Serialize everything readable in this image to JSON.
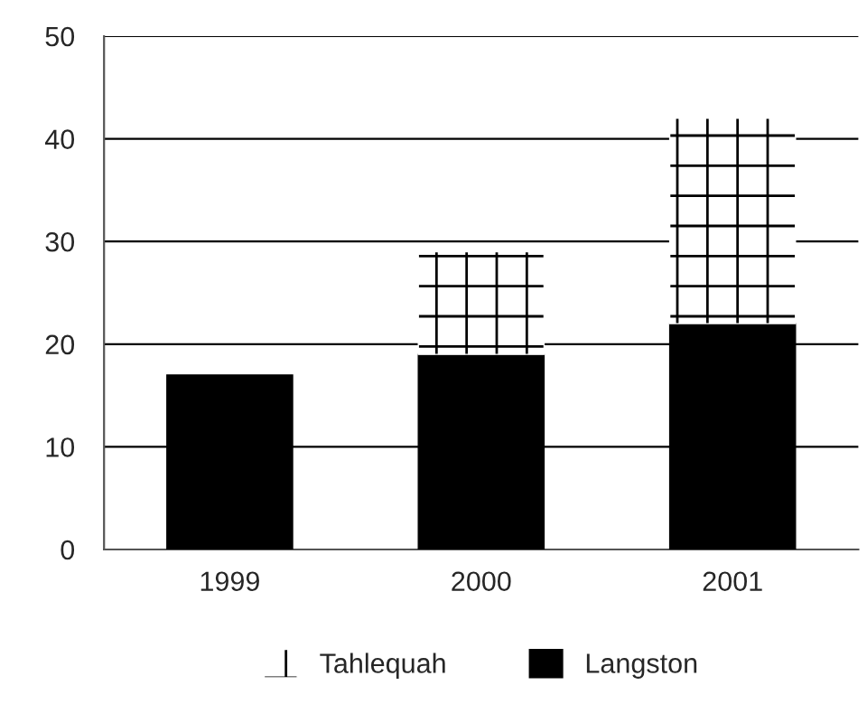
{
  "chart_data": {
    "type": "bar",
    "stacked": true,
    "categories": [
      "1999",
      "2000",
      "2001"
    ],
    "series": [
      {
        "name": "Langston",
        "color": "#000000",
        "values": [
          17,
          19,
          22
        ]
      },
      {
        "name": "Tahlequah",
        "color": "#ffffff",
        "values": [
          null,
          10,
          20
        ]
      }
    ],
    "ylim": [
      0,
      50
    ],
    "yticks": [
      0,
      10,
      20,
      30,
      40,
      50
    ],
    "grid": "y",
    "legend": "bottom"
  }
}
